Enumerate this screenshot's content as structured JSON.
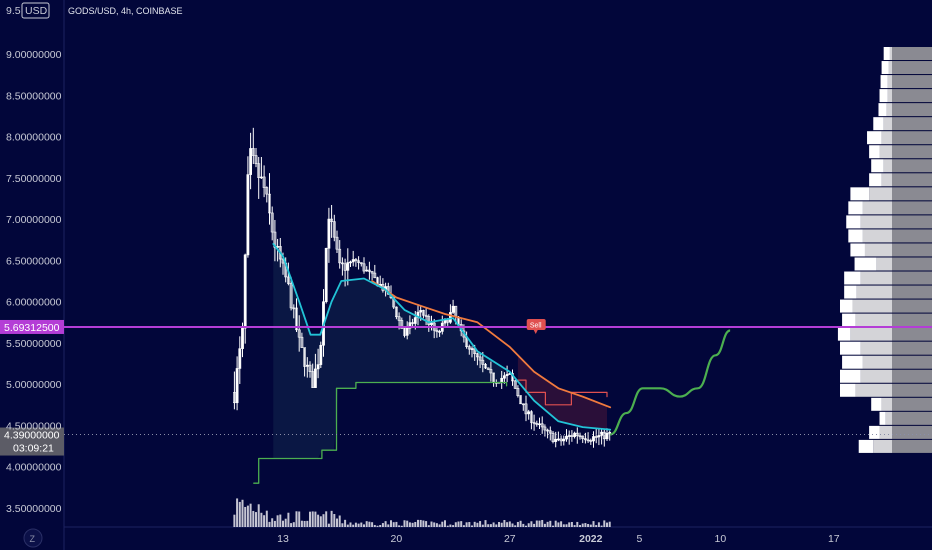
{
  "header": {
    "symbol_title": "GODS/USD, 4h, COINBASE",
    "top_price_label": "9.5",
    "currency_label": "USD"
  },
  "footer": {
    "zoom_button_label": "Z"
  },
  "colors": {
    "background": "#02063a",
    "candle": "#ffffff",
    "cyan_ma": "#22c3d6",
    "orange_ma": "#f07a3e",
    "green_line": "#4caf50",
    "sell_red": "#e05050",
    "magenta_level": "#b43dd6",
    "volume_profile_left": "#d4d4d8",
    "volume_profile_right": "#8a8a92"
  },
  "chart_data": {
    "type": "candlestick",
    "timeframe": "4h",
    "y_axis": {
      "ylim": [
        3.25,
        9.5
      ],
      "tick_labels": [
        "9.00000000",
        "8.50000000",
        "8.00000000",
        "7.50000000",
        "7.00000000",
        "6.50000000",
        "6.00000000",
        "5.50000000",
        "5.00000000",
        "4.50000000",
        "4.00000000",
        "3.50000000"
      ],
      "tick_values": [
        9.0,
        8.5,
        8.0,
        7.5,
        7.0,
        6.5,
        6.0,
        5.5,
        5.0,
        4.5,
        4.0,
        3.5
      ]
    },
    "x_axis": {
      "tick_labels": [
        "13",
        "20",
        "27",
        "2022",
        "5",
        "10",
        "17"
      ],
      "tick_days": [
        13,
        20,
        27,
        32,
        35,
        40,
        47
      ],
      "xlim_days": [
        1,
        52
      ]
    },
    "markers": {
      "horizontal_level": 5.693125,
      "horizontal_level_label": "5.69312500",
      "last_price": 4.39,
      "last_price_label": "4.39000000",
      "countdown_label": "03:09:21",
      "sell_label": "Sell",
      "sell_day": 28.6,
      "sell_price": 5.62
    },
    "price_anchors": [
      {
        "day": 10.0,
        "price": 4.9
      },
      {
        "day": 10.5,
        "price": 5.6
      },
      {
        "day": 10.9,
        "price": 7.8
      },
      {
        "day": 11.3,
        "price": 7.6
      },
      {
        "day": 11.8,
        "price": 7.4
      },
      {
        "day": 12.5,
        "price": 6.7
      },
      {
        "day": 13.3,
        "price": 6.2
      },
      {
        "day": 14.0,
        "price": 5.5
      },
      {
        "day": 14.8,
        "price": 5.0
      },
      {
        "day": 15.3,
        "price": 5.4
      },
      {
        "day": 15.8,
        "price": 7.1
      },
      {
        "day": 16.5,
        "price": 6.4
      },
      {
        "day": 17.5,
        "price": 6.5
      },
      {
        "day": 18.5,
        "price": 6.3
      },
      {
        "day": 19.5,
        "price": 6.1
      },
      {
        "day": 20.5,
        "price": 5.6
      },
      {
        "day": 21.5,
        "price": 5.9
      },
      {
        "day": 22.5,
        "price": 5.6
      },
      {
        "day": 23.5,
        "price": 5.9
      },
      {
        "day": 24.0,
        "price": 5.6
      },
      {
        "day": 25.0,
        "price": 5.3
      },
      {
        "day": 26.0,
        "price": 5.05
      },
      {
        "day": 27.0,
        "price": 5.1
      },
      {
        "day": 28.0,
        "price": 4.65
      },
      {
        "day": 29.0,
        "price": 4.45
      },
      {
        "day": 30.0,
        "price": 4.3
      },
      {
        "day": 31.0,
        "price": 4.4
      },
      {
        "day": 32.0,
        "price": 4.35
      },
      {
        "day": 33.2,
        "price": 4.39
      }
    ],
    "cyan_ma": [
      {
        "day": 12.4,
        "price": 6.7
      },
      {
        "day": 13.0,
        "price": 6.55
      },
      {
        "day": 14.0,
        "price": 6.0
      },
      {
        "day": 14.7,
        "price": 5.6
      },
      {
        "day": 15.3,
        "price": 5.6
      },
      {
        "day": 16.0,
        "price": 6.0
      },
      {
        "day": 16.6,
        "price": 6.25
      },
      {
        "day": 18.0,
        "price": 6.28
      },
      {
        "day": 19.3,
        "price": 6.15
      },
      {
        "day": 20.5,
        "price": 5.9
      },
      {
        "day": 22.0,
        "price": 5.75
      },
      {
        "day": 23.5,
        "price": 5.8
      },
      {
        "day": 25.0,
        "price": 5.4
      },
      {
        "day": 27.0,
        "price": 5.15
      },
      {
        "day": 28.5,
        "price": 4.8
      },
      {
        "day": 30.0,
        "price": 4.55
      },
      {
        "day": 31.5,
        "price": 4.48
      },
      {
        "day": 33.2,
        "price": 4.45
      }
    ],
    "orange_ma": [
      {
        "day": 18.5,
        "price": 6.25
      },
      {
        "day": 20.0,
        "price": 6.05
      },
      {
        "day": 21.5,
        "price": 5.95
      },
      {
        "day": 23.0,
        "price": 5.85
      },
      {
        "day": 25.0,
        "price": 5.75
      },
      {
        "day": 27.0,
        "price": 5.45
      },
      {
        "day": 28.5,
        "price": 5.15
      },
      {
        "day": 30.0,
        "price": 4.95
      },
      {
        "day": 31.5,
        "price": 4.85
      },
      {
        "day": 33.2,
        "price": 4.72
      }
    ],
    "red_stop": [
      {
        "day": 27.5,
        "price": 5.05
      },
      {
        "day": 28.0,
        "price": 5.05
      },
      {
        "day": 28.0,
        "price": 4.9
      },
      {
        "day": 29.2,
        "price": 4.9
      },
      {
        "day": 29.2,
        "price": 4.75
      },
      {
        "day": 30.8,
        "price": 4.75
      },
      {
        "day": 30.8,
        "price": 4.9
      },
      {
        "day": 33.0,
        "price": 4.9
      },
      {
        "day": 33.0,
        "price": 4.85
      }
    ],
    "green_support": [
      {
        "day": 11.2,
        "price": 3.8
      },
      {
        "day": 11.5,
        "price": 3.8
      },
      {
        "day": 11.5,
        "price": 4.1
      },
      {
        "day": 15.4,
        "price": 4.1
      },
      {
        "day": 15.4,
        "price": 4.2
      },
      {
        "day": 16.3,
        "price": 4.2
      },
      {
        "day": 16.3,
        "price": 4.95
      },
      {
        "day": 17.5,
        "price": 4.95
      },
      {
        "day": 17.5,
        "price": 5.02
      },
      {
        "day": 26.8,
        "price": 5.02
      },
      {
        "day": 26.8,
        "price": 4.98
      }
    ],
    "green_projection": [
      {
        "day": 33.2,
        "price": 4.39
      },
      {
        "day": 34.2,
        "price": 4.65
      },
      {
        "day": 35.2,
        "price": 4.95
      },
      {
        "day": 36.3,
        "price": 4.95
      },
      {
        "day": 37.5,
        "price": 4.85
      },
      {
        "day": 38.6,
        "price": 4.95
      },
      {
        "day": 39.7,
        "price": 5.35
      },
      {
        "day": 40.6,
        "price": 5.65
      }
    ],
    "volume_profile": [
      {
        "price": 9.0,
        "left": 0.02,
        "right": 0.08
      },
      {
        "price": 8.83,
        "left": 0.03,
        "right": 0.1
      },
      {
        "price": 8.66,
        "left": 0.04,
        "right": 0.11
      },
      {
        "price": 8.49,
        "left": 0.04,
        "right": 0.12
      },
      {
        "price": 8.32,
        "left": 0.05,
        "right": 0.13
      },
      {
        "price": 8.15,
        "left": 0.08,
        "right": 0.18
      },
      {
        "price": 7.98,
        "left": 0.1,
        "right": 0.24
      },
      {
        "price": 7.81,
        "left": 0.12,
        "right": 0.22
      },
      {
        "price": 7.64,
        "left": 0.08,
        "right": 0.2
      },
      {
        "price": 7.47,
        "left": 0.1,
        "right": 0.22
      },
      {
        "price": 7.3,
        "left": 0.22,
        "right": 0.4
      },
      {
        "price": 7.13,
        "left": 0.28,
        "right": 0.42
      },
      {
        "price": 6.96,
        "left": 0.3,
        "right": 0.44
      },
      {
        "price": 6.79,
        "left": 0.28,
        "right": 0.42
      },
      {
        "price": 6.62,
        "left": 0.26,
        "right": 0.4
      },
      {
        "price": 6.45,
        "left": 0.15,
        "right": 0.36
      },
      {
        "price": 6.28,
        "left": 0.3,
        "right": 0.46
      },
      {
        "price": 6.11,
        "left": 0.34,
        "right": 0.46
      },
      {
        "price": 5.94,
        "left": 0.38,
        "right": 0.5
      },
      {
        "price": 5.77,
        "left": 0.35,
        "right": 0.48
      },
      {
        "price": 5.6,
        "left": 0.4,
        "right": 0.52
      },
      {
        "price": 5.43,
        "left": 0.3,
        "right": 0.5
      },
      {
        "price": 5.26,
        "left": 0.28,
        "right": 0.48
      },
      {
        "price": 5.09,
        "left": 0.3,
        "right": 0.5
      },
      {
        "price": 4.92,
        "left": 0.35,
        "right": 0.5
      },
      {
        "price": 4.75,
        "left": 0.1,
        "right": 0.2
      },
      {
        "price": 4.58,
        "left": 0.06,
        "right": 0.12
      },
      {
        "price": 4.41,
        "left": 0.12,
        "right": 0.22
      },
      {
        "price": 4.24,
        "left": 0.18,
        "right": 0.32
      }
    ]
  }
}
